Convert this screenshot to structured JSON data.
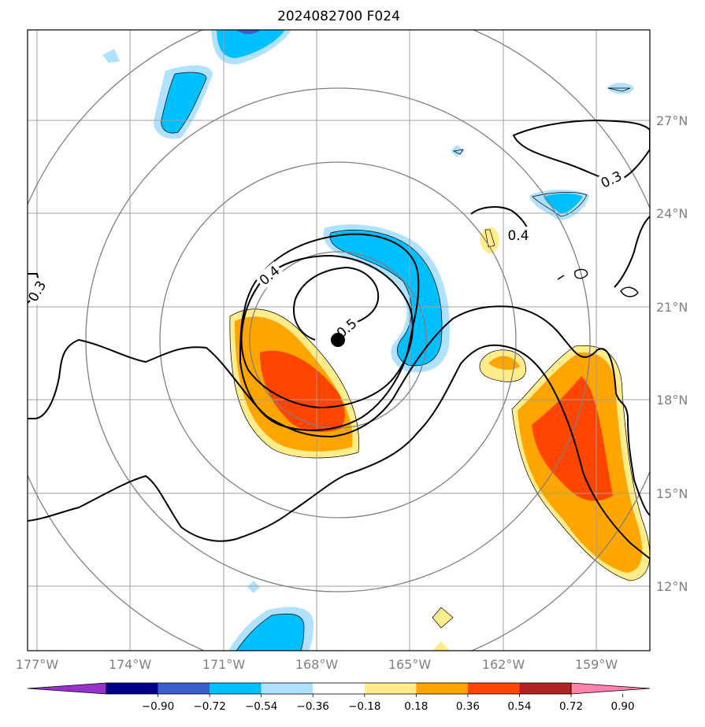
{
  "title": "2024082700 F024",
  "map": {
    "lon_labels": [
      "177°W",
      "174°W",
      "171°W",
      "168°W",
      "165°W",
      "162°W",
      "159°W"
    ],
    "lat_labels": [
      "27°N",
      "24°N",
      "21°N",
      "18°N",
      "15°N",
      "12°N"
    ],
    "gridline_color": "#a0a0a0",
    "range_ring_color": "#808080",
    "center_marker": "storm-center-dot"
  },
  "contour_labels": [
    "0.3",
    "0.4",
    "0.4",
    "0.3",
    "0.5"
  ],
  "colorbar": {
    "tick_labels": [
      "−0.90",
      "−0.72",
      "−0.54",
      "−0.36",
      "−0.18",
      "0.18",
      "0.36",
      "0.54",
      "0.72",
      "0.90"
    ],
    "colors": [
      "#9932cc",
      "#00008b",
      "#3a5fcd",
      "#00bfff",
      "#b0e2ff",
      "#ffffff",
      "#ffec8b",
      "#ffa500",
      "#ff4500",
      "#b22222",
      "#ff82ab"
    ],
    "extend": "both"
  },
  "fill_colors": {
    "neg_1": "#b0e2ff",
    "neg_2": "#00bfff",
    "neg_3": "#3a5fcd",
    "pos_1": "#ffec8b",
    "pos_2": "#ffa500",
    "pos_3": "#ff4500"
  }
}
